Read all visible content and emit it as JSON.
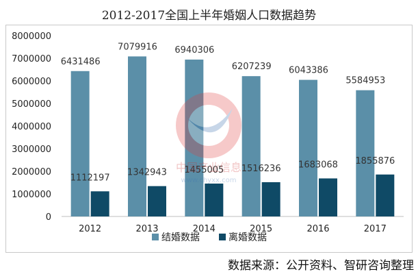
{
  "title": "2012-2017全国上半年婚姻人口数据趋势",
  "source": "数据来源：公开资料、智研咨询整理",
  "watermark": {
    "text": "中国产业信息",
    "url_text": "www.chyxx.com"
  },
  "colors": {
    "marriage": "#5b8fa8",
    "divorce": "#0f4a66"
  },
  "chart_data": {
    "type": "bar",
    "categories": [
      "2012",
      "2013",
      "2014",
      "2015",
      "2016",
      "2017"
    ],
    "series": [
      {
        "name": "结婚数据",
        "values": [
          6431486,
          7079916,
          6940306,
          6207239,
          6043386,
          5584953
        ]
      },
      {
        "name": "离婚数据",
        "values": [
          1112197,
          1342943,
          1455005,
          1516236,
          1683068,
          1855876
        ]
      }
    ],
    "ylim": [
      0,
      8000000
    ],
    "yticks": [
      "0",
      "1000000",
      "2000000",
      "3000000",
      "4000000",
      "5000000",
      "6000000",
      "7000000",
      "8000000"
    ],
    "legend_position": "bottom",
    "grid": false
  }
}
